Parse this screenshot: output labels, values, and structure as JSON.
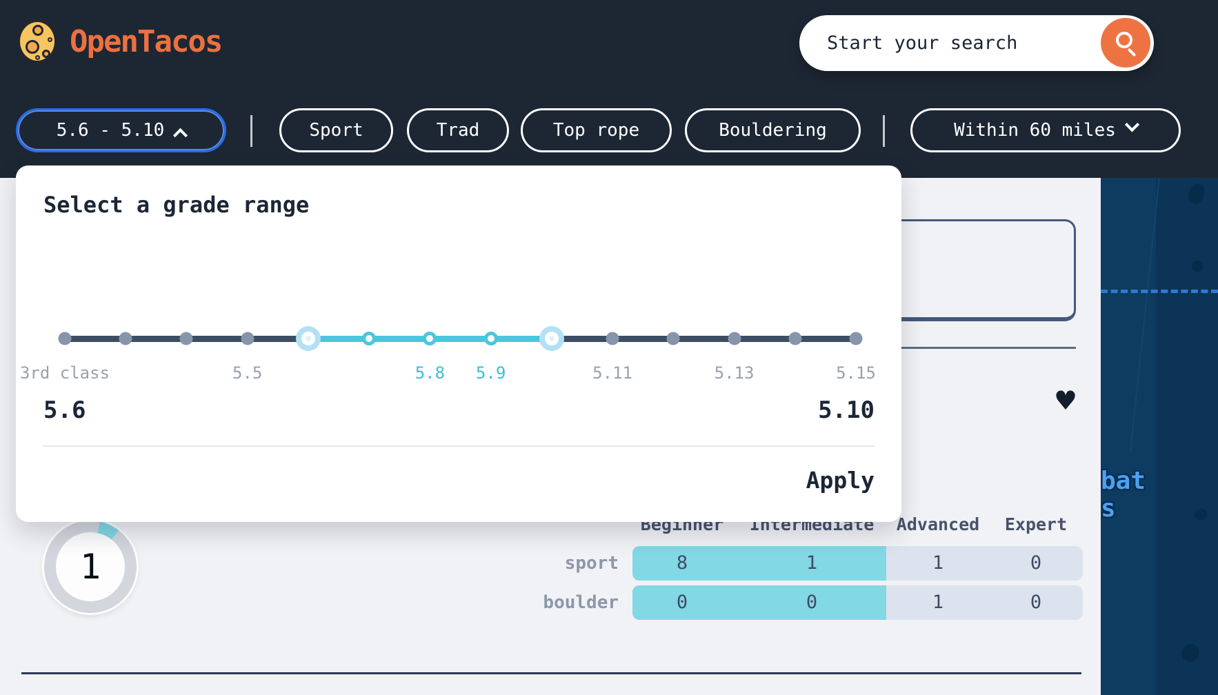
{
  "colors": {
    "header_bg": "#1D2734",
    "accent_orange": "#ED7343",
    "focus_blue": "#2B6BE4",
    "slider_cyan": "#4CC6DC",
    "bar_cyan": "#82D8E5",
    "bar_gray": "#DDE3EE",
    "page_bg": "#F1F2F5",
    "map_navy": "#0B3457",
    "map_label_blue": "#4BA1F2",
    "text_dark": "#1C2636"
  },
  "header": {
    "logo_text": "OpenTacos",
    "search": {
      "placeholder": "Start your search"
    },
    "filters": {
      "grade_label": "5.6 - 5.10",
      "disciplines": [
        "Sport",
        "Trad",
        "Top rope",
        "Bouldering"
      ],
      "distance_label": "Within 60 miles"
    }
  },
  "grade_panel": {
    "title": "Select a grade range",
    "min_value": "5.6",
    "max_value": "5.10",
    "apply_label": "Apply",
    "slider": {
      "selected_range": [
        "5.6",
        "5.10"
      ],
      "labels": [
        {
          "text": "3rd class",
          "stop": 0,
          "in_range": false
        },
        {
          "text": "5.5",
          "stop": 3,
          "in_range": false
        },
        {
          "text": "5.8",
          "stop": 6,
          "in_range": true
        },
        {
          "text": "5.9",
          "stop": 7,
          "in_range": true
        },
        {
          "text": "5.11",
          "stop": 9,
          "in_range": false
        },
        {
          "text": "5.13",
          "stop": 11,
          "in_range": false
        },
        {
          "text": "5.15",
          "stop": 13,
          "in_range": false
        }
      ]
    }
  },
  "results": {
    "marker_count": "1",
    "heart_glyph": "♥",
    "grade_table": {
      "headers": [
        "Beginner",
        "Intermediate",
        "Advanced",
        "Expert"
      ],
      "rows": [
        {
          "label": "sport",
          "values": [
            "8",
            "1",
            "1",
            "0"
          ]
        },
        {
          "label": "boulder",
          "values": [
            "0",
            "0",
            "1",
            "0"
          ]
        }
      ]
    }
  },
  "map": {
    "partial_labels": [
      "bat",
      "s"
    ]
  }
}
